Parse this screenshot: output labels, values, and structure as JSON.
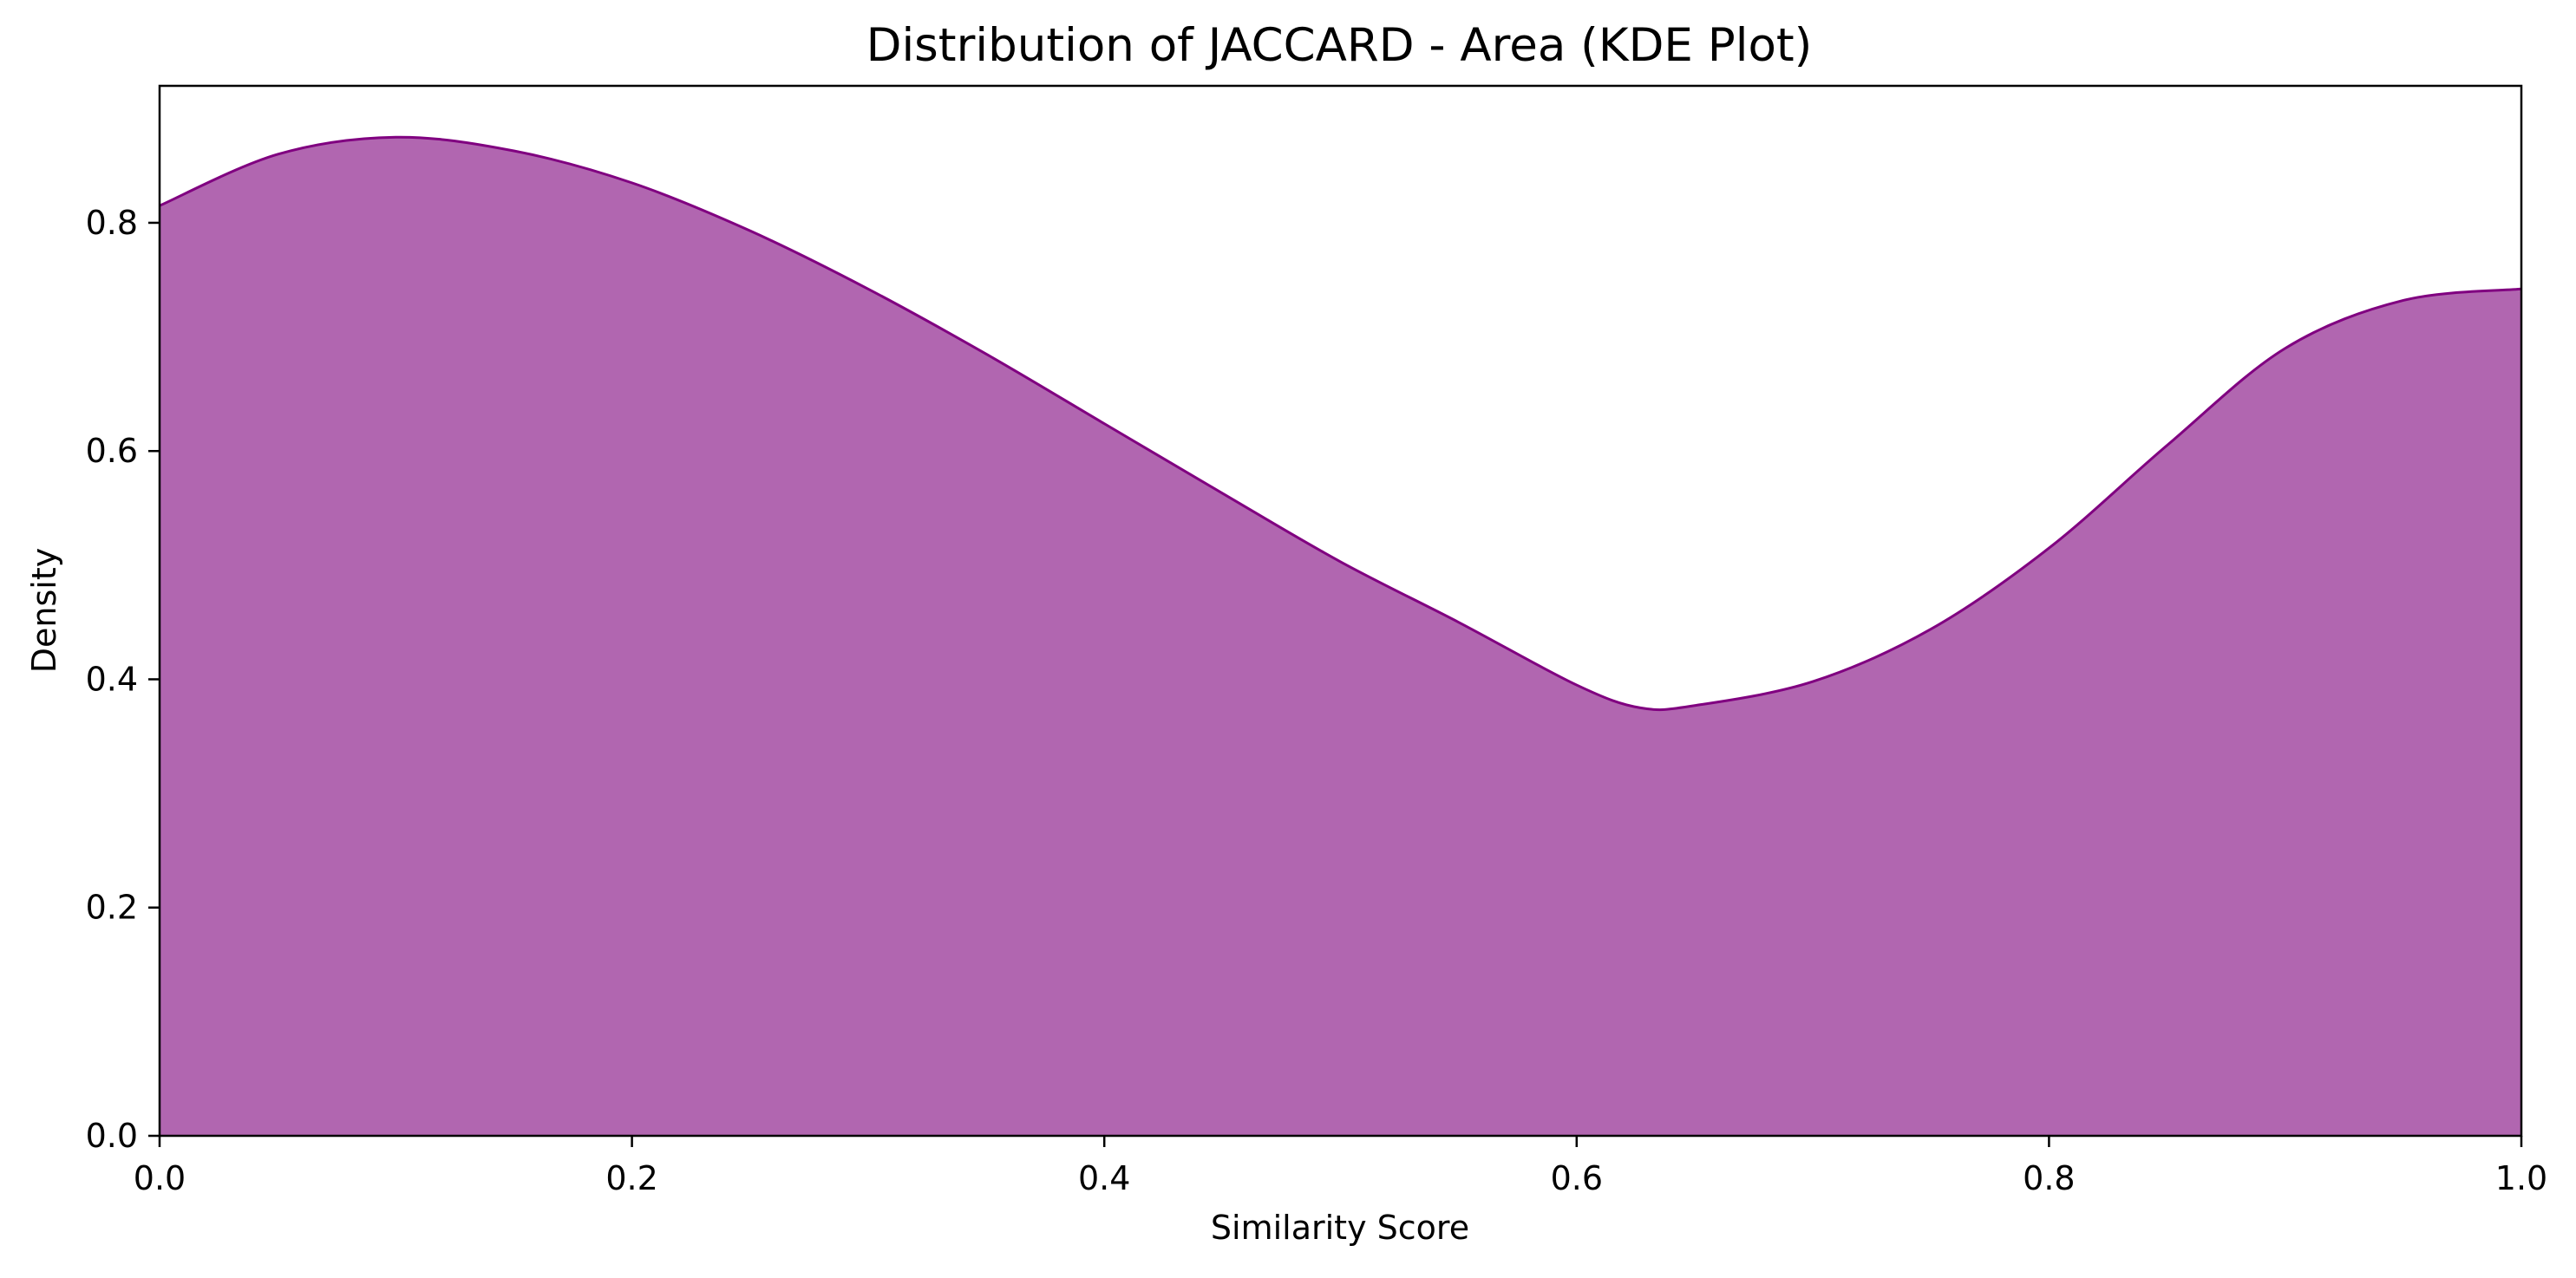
{
  "chart_data": {
    "type": "area",
    "title": "Distribution of JACCARD - Area (KDE Plot)",
    "xlabel": "Similarity Score",
    "ylabel": "Density",
    "xlim": [
      0.0,
      1.0
    ],
    "ylim": [
      0.0,
      0.92
    ],
    "xticks": [
      "0.0",
      "0.2",
      "0.4",
      "0.6",
      "0.8",
      "1.0"
    ],
    "yticks": [
      "0.0",
      "0.2",
      "0.4",
      "0.6",
      "0.8"
    ],
    "grid": false,
    "legend": "none",
    "colors": {
      "fill": "#b166b0",
      "line": "#800080"
    },
    "series": [
      {
        "x": [
          0.0,
          0.05,
          0.1,
          0.15,
          0.2,
          0.25,
          0.3,
          0.35,
          0.4,
          0.45,
          0.5,
          0.55,
          0.6,
          0.627,
          0.65,
          0.7,
          0.75,
          0.8,
          0.85,
          0.9,
          0.95,
          1.0
        ],
        "y": [
          0.815,
          0.86,
          0.875,
          0.863,
          0.835,
          0.793,
          0.742,
          0.685,
          0.624,
          0.563,
          0.503,
          0.45,
          0.395,
          0.375,
          0.377,
          0.398,
          0.444,
          0.515,
          0.605,
          0.69,
          0.732,
          0.742
        ]
      }
    ]
  }
}
